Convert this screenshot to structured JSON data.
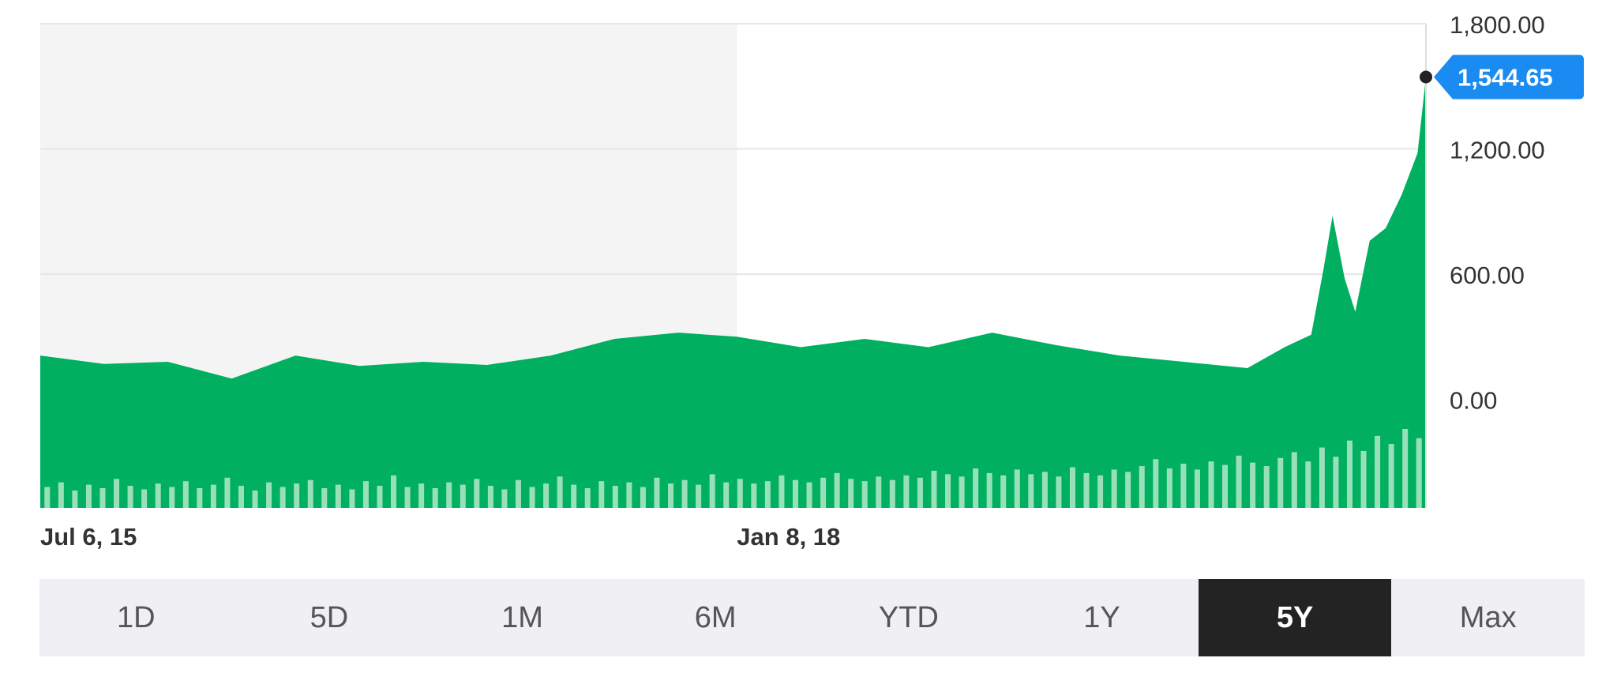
{
  "chart_data": {
    "type": "area",
    "title": "",
    "xlabel": "",
    "ylabel": "",
    "x_tick_labels": [
      "Jul 6, 15",
      "Jan 8, 18"
    ],
    "y_tick_labels": [
      "1,800.00",
      "1,200.00",
      "600.00",
      "0.00"
    ],
    "y_ticks": [
      1800,
      1200,
      600,
      0
    ],
    "ylim": [
      -520,
      1800
    ],
    "x_range": [
      "2015-07-06",
      "2020-07-03"
    ],
    "grid": true,
    "shaded_region": {
      "from": "2015-07-06",
      "to": "2018-01-08"
    },
    "last_value": 1544.65,
    "last_value_label": "1,544.65",
    "colors": {
      "area": "#00b060",
      "volume": "#a8e6c4",
      "label_bg": "#1a8bf0",
      "grid": "#e6e6e6",
      "shade": "#f4f4f4"
    },
    "series": [
      {
        "x": [
          "2015-07-06",
          "2015-09-28",
          "2015-12-21",
          "2016-03-14",
          "2016-06-06",
          "2016-08-29",
          "2016-11-21",
          "2017-02-13",
          "2017-05-08",
          "2017-07-31",
          "2017-10-23",
          "2018-01-08",
          "2018-04-02",
          "2018-06-25",
          "2018-09-17",
          "2018-12-10",
          "2019-03-04",
          "2019-05-27",
          "2019-08-19",
          "2019-11-11",
          "2019-12-30",
          "2020-02-03",
          "2020-02-19",
          "2020-03-02",
          "2020-03-18",
          "2020-04-01",
          "2020-04-20",
          "2020-05-11",
          "2020-06-01",
          "2020-06-22",
          "2020-07-03"
        ],
        "values": [
          210,
          170,
          180,
          100,
          210,
          160,
          180,
          165,
          210,
          290,
          320,
          300,
          250,
          290,
          250,
          320,
          260,
          210,
          180,
          150,
          250,
          310,
          620,
          880,
          580,
          420,
          760,
          820,
          980,
          1180,
          1544.65
        ]
      }
    ],
    "volume": {
      "values": [
        18,
        22,
        15,
        20,
        17,
        25,
        19,
        16,
        21,
        18,
        23,
        17,
        20,
        26,
        19,
        15,
        22,
        18,
        21,
        24,
        17,
        20,
        16,
        23,
        19,
        28,
        18,
        21,
        17,
        22,
        20,
        25,
        19,
        16,
        24,
        18,
        21,
        27,
        20,
        17,
        23,
        19,
        22,
        18,
        26,
        21,
        24,
        20,
        29,
        22,
        25,
        21,
        23,
        28,
        24,
        22,
        26,
        30,
        25,
        23,
        27,
        24,
        28,
        26,
        32,
        29,
        27,
        34,
        30,
        28,
        33,
        29,
        31,
        27,
        35,
        30,
        28,
        33,
        31,
        36,
        42,
        34,
        38,
        33,
        40,
        37,
        45,
        39,
        36,
        43,
        48,
        40,
        52,
        44,
        58,
        49,
        62,
        55,
        68,
        60
      ]
    }
  },
  "range_selector": {
    "options": [
      "1D",
      "5D",
      "1M",
      "6M",
      "YTD",
      "1Y",
      "5Y",
      "Max"
    ],
    "selected": "5Y"
  }
}
